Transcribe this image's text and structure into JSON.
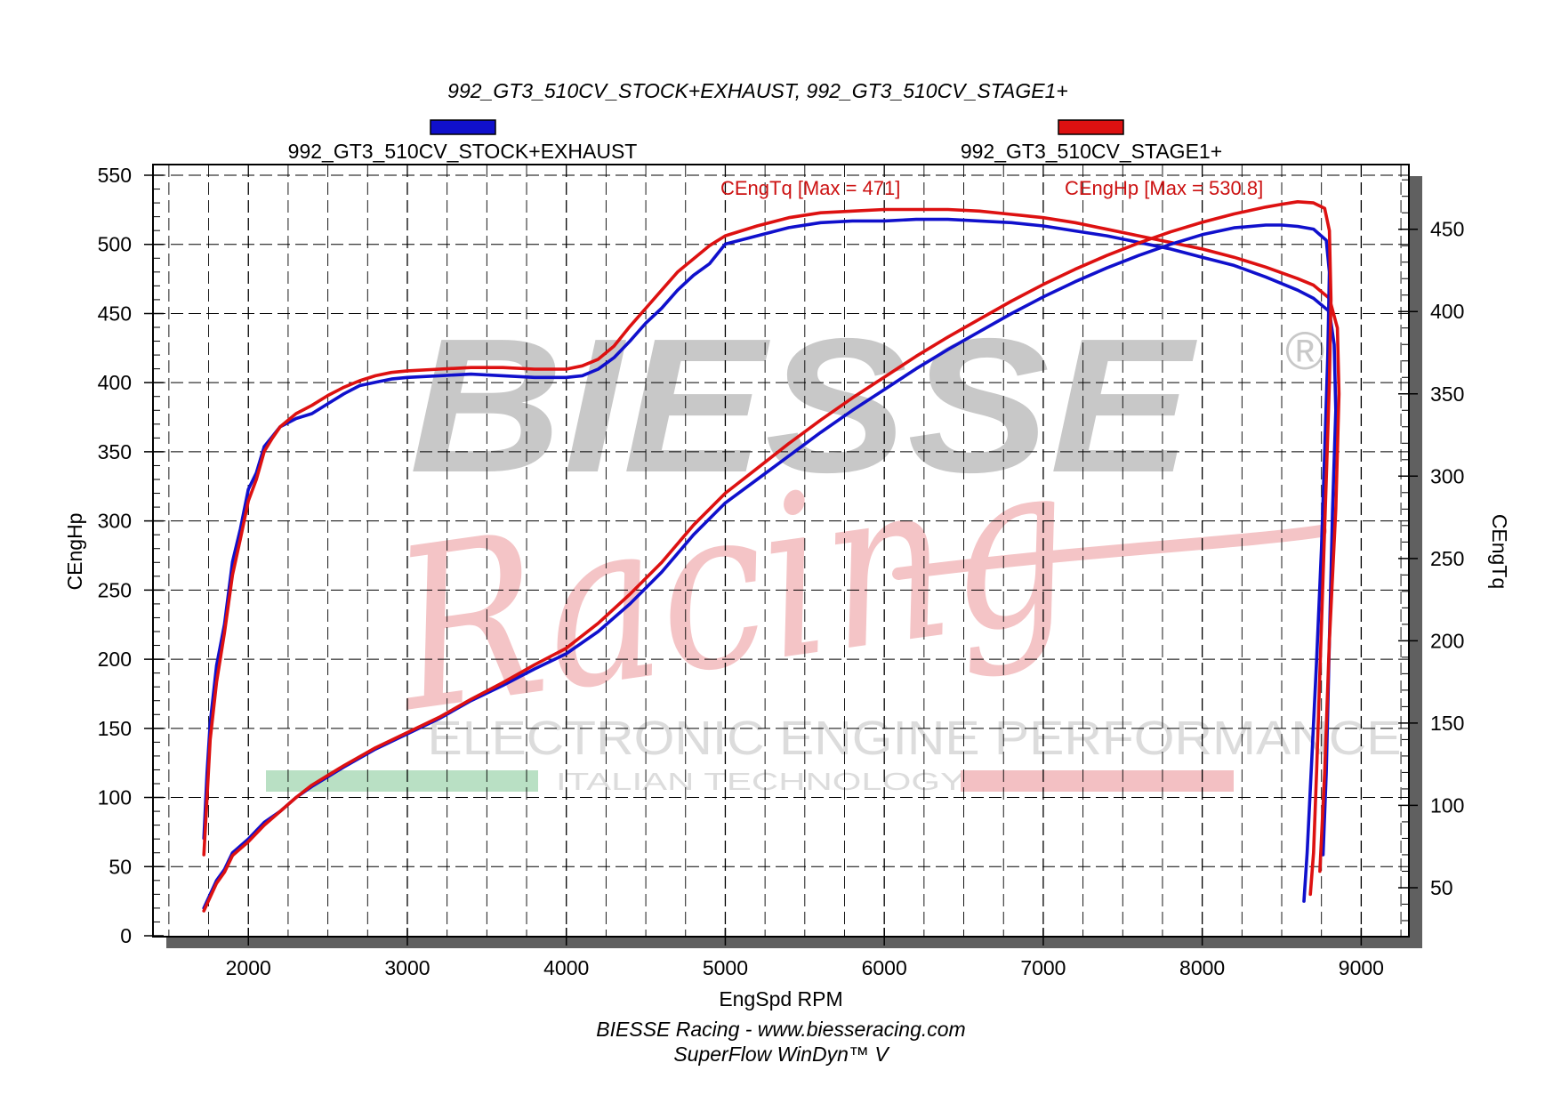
{
  "header": {
    "title": "992_GT3_510CV_STOCK+EXHAUST, 992_GT3_510CV_STAGE1+"
  },
  "footer": {
    "line1": "BIESSE Racing - www.biesseracing.com",
    "line2": "SuperFlow WinDyn™ V"
  },
  "watermark": {
    "brand": "BIESSE",
    "registered": "®",
    "script": "Racing",
    "tagline": "ELECTRONIC ENGINE PERFORMANCE",
    "subtagline": "ITALIAN TECHNOLOGY",
    "colors": {
      "brand": "#c8c8c8",
      "script": "#f4c4c6",
      "green": "#b9e0c4",
      "red": "#f3c0c3"
    }
  },
  "chart_data": {
    "type": "line",
    "xlabel": "EngSpd RPM",
    "ylabel_left": "CEngHp",
    "ylabel_right": "CEngTq",
    "xlim": [
      1400,
      9300
    ],
    "ylim_left": [
      0,
      550
    ],
    "ylim_right": [
      20.8,
      482.8
    ],
    "x_ticks": [
      2000,
      3000,
      4000,
      5000,
      6000,
      7000,
      8000,
      9000
    ],
    "y_left_ticks": [
      0,
      50,
      100,
      150,
      200,
      250,
      300,
      350,
      400,
      450,
      500,
      550
    ],
    "y_right_ticks": [
      50,
      100,
      150,
      200,
      250,
      300,
      350,
      400,
      450
    ],
    "grid": true,
    "legend": {
      "placement": "top",
      "entries": [
        {
          "name": "992_GT3_510CV_STOCK+EXHAUST",
          "color": "#1010cc"
        },
        {
          "name": "992_GT3_510CV_STAGE1+",
          "color": "#dd1111"
        }
      ]
    },
    "annotations": [
      {
        "text": "CEngTq [Max = 471]",
        "color": "#cc1111"
      },
      {
        "text": "CEngHp [Max = 530.8]",
        "color": "#cc1111"
      }
    ],
    "series": [
      {
        "name": "992_GT3_510CV_STOCK+EXHAUST",
        "quantity": "CEngTq",
        "axis": "right",
        "color": "#1010cc",
        "points": [
          [
            1720,
            80
          ],
          [
            1740,
            120
          ],
          [
            1760,
            150
          ],
          [
            1800,
            185
          ],
          [
            1850,
            210
          ],
          [
            1900,
            248
          ],
          [
            1950,
            268
          ],
          [
            2000,
            292
          ],
          [
            2050,
            302
          ],
          [
            2100,
            318
          ],
          [
            2150,
            324
          ],
          [
            2200,
            330
          ],
          [
            2300,
            335
          ],
          [
            2400,
            338
          ],
          [
            2500,
            344
          ],
          [
            2600,
            350
          ],
          [
            2700,
            355
          ],
          [
            2800,
            357
          ],
          [
            2900,
            359
          ],
          [
            3000,
            360
          ],
          [
            3200,
            361
          ],
          [
            3400,
            362
          ],
          [
            3600,
            361
          ],
          [
            3800,
            360
          ],
          [
            4000,
            360
          ],
          [
            4100,
            361
          ],
          [
            4200,
            365
          ],
          [
            4300,
            372
          ],
          [
            4400,
            382
          ],
          [
            4500,
            393
          ],
          [
            4600,
            402
          ],
          [
            4700,
            413
          ],
          [
            4800,
            422
          ],
          [
            4900,
            429
          ],
          [
            5000,
            441
          ],
          [
            5200,
            446
          ],
          [
            5400,
            451
          ],
          [
            5600,
            454
          ],
          [
            5800,
            455
          ],
          [
            6000,
            455
          ],
          [
            6200,
            456
          ],
          [
            6400,
            456
          ],
          [
            6600,
            455
          ],
          [
            6800,
            454
          ],
          [
            7000,
            452
          ],
          [
            7200,
            449
          ],
          [
            7400,
            446
          ],
          [
            7600,
            442
          ],
          [
            7800,
            438
          ],
          [
            8000,
            433
          ],
          [
            8200,
            428
          ],
          [
            8400,
            421
          ],
          [
            8600,
            413
          ],
          [
            8700,
            408
          ],
          [
            8800,
            400
          ],
          [
            8830,
            380
          ],
          [
            8840,
            340
          ],
          [
            8820,
            280
          ],
          [
            8800,
            200
          ],
          [
            8780,
            120
          ],
          [
            8760,
            70
          ]
        ]
      },
      {
        "name": "992_GT3_510CV_STAGE1+",
        "quantity": "CEngTq",
        "axis": "right",
        "color": "#dd1111",
        "points": [
          [
            1720,
            70
          ],
          [
            1740,
            105
          ],
          [
            1760,
            140
          ],
          [
            1800,
            175
          ],
          [
            1850,
            205
          ],
          [
            1900,
            240
          ],
          [
            1950,
            262
          ],
          [
            2000,
            285
          ],
          [
            2050,
            298
          ],
          [
            2100,
            315
          ],
          [
            2150,
            323
          ],
          [
            2200,
            330
          ],
          [
            2300,
            338
          ],
          [
            2400,
            343
          ],
          [
            2500,
            349
          ],
          [
            2600,
            354
          ],
          [
            2700,
            358
          ],
          [
            2800,
            361
          ],
          [
            2900,
            363
          ],
          [
            3000,
            364
          ],
          [
            3200,
            365
          ],
          [
            3400,
            366
          ],
          [
            3600,
            366
          ],
          [
            3800,
            365
          ],
          [
            4000,
            365
          ],
          [
            4100,
            367
          ],
          [
            4200,
            371
          ],
          [
            4300,
            379
          ],
          [
            4400,
            391
          ],
          [
            4500,
            402
          ],
          [
            4600,
            413
          ],
          [
            4700,
            424
          ],
          [
            4800,
            432
          ],
          [
            4900,
            440
          ],
          [
            5000,
            446
          ],
          [
            5200,
            452
          ],
          [
            5400,
            457
          ],
          [
            5600,
            460
          ],
          [
            5800,
            461
          ],
          [
            6000,
            462
          ],
          [
            6200,
            462
          ],
          [
            6400,
            462
          ],
          [
            6600,
            461
          ],
          [
            6800,
            459
          ],
          [
            7000,
            457
          ],
          [
            7200,
            454
          ],
          [
            7400,
            450
          ],
          [
            7600,
            446
          ],
          [
            7800,
            442
          ],
          [
            8000,
            438
          ],
          [
            8200,
            433
          ],
          [
            8400,
            427
          ],
          [
            8600,
            420
          ],
          [
            8700,
            416
          ],
          [
            8800,
            408
          ],
          [
            8850,
            390
          ],
          [
            8860,
            350
          ],
          [
            8840,
            280
          ],
          [
            8800,
            200
          ],
          [
            8770,
            120
          ],
          [
            8740,
            60
          ]
        ]
      },
      {
        "name": "992_GT3_510CV_STOCK+EXHAUST",
        "quantity": "CEngHp",
        "axis": "left",
        "color": "#1010cc",
        "points": [
          [
            1720,
            20
          ],
          [
            1760,
            30
          ],
          [
            1800,
            40
          ],
          [
            1850,
            48
          ],
          [
            1900,
            60
          ],
          [
            2000,
            70
          ],
          [
            2100,
            82
          ],
          [
            2200,
            90
          ],
          [
            2300,
            100
          ],
          [
            2400,
            108
          ],
          [
            2500,
            115
          ],
          [
            2600,
            122
          ],
          [
            2800,
            135
          ],
          [
            3000,
            146
          ],
          [
            3200,
            157
          ],
          [
            3400,
            170
          ],
          [
            3600,
            181
          ],
          [
            3800,
            193
          ],
          [
            4000,
            204
          ],
          [
            4200,
            220
          ],
          [
            4400,
            240
          ],
          [
            4600,
            263
          ],
          [
            4800,
            290
          ],
          [
            5000,
            313
          ],
          [
            5200,
            330
          ],
          [
            5400,
            347
          ],
          [
            5600,
            364
          ],
          [
            5800,
            380
          ],
          [
            6000,
            395
          ],
          [
            6200,
            410
          ],
          [
            6400,
            424
          ],
          [
            6600,
            437
          ],
          [
            6800,
            450
          ],
          [
            7000,
            462
          ],
          [
            7200,
            473
          ],
          [
            7400,
            483
          ],
          [
            7600,
            492
          ],
          [
            7800,
            500
          ],
          [
            8000,
            507
          ],
          [
            8200,
            512
          ],
          [
            8400,
            514
          ],
          [
            8500,
            514
          ],
          [
            8600,
            513
          ],
          [
            8700,
            511
          ],
          [
            8780,
            503
          ],
          [
            8800,
            480
          ],
          [
            8790,
            420
          ],
          [
            8770,
            350
          ],
          [
            8750,
            280
          ],
          [
            8720,
            200
          ],
          [
            8690,
            130
          ],
          [
            8660,
            60
          ],
          [
            8640,
            25
          ]
        ]
      },
      {
        "name": "992_GT3_510CV_STAGE1+",
        "quantity": "CEngHp",
        "axis": "left",
        "color": "#dd1111",
        "points": [
          [
            1720,
            18
          ],
          [
            1760,
            28
          ],
          [
            1800,
            38
          ],
          [
            1850,
            46
          ],
          [
            1900,
            58
          ],
          [
            2000,
            68
          ],
          [
            2100,
            80
          ],
          [
            2200,
            90
          ],
          [
            2300,
            100
          ],
          [
            2400,
            109
          ],
          [
            2500,
            116
          ],
          [
            2600,
            123
          ],
          [
            2800,
            136
          ],
          [
            3000,
            147
          ],
          [
            3200,
            158
          ],
          [
            3400,
            171
          ],
          [
            3600,
            183
          ],
          [
            3800,
            196
          ],
          [
            4000,
            208
          ],
          [
            4200,
            226
          ],
          [
            4400,
            247
          ],
          [
            4600,
            270
          ],
          [
            4800,
            297
          ],
          [
            5000,
            320
          ],
          [
            5200,
            338
          ],
          [
            5400,
            356
          ],
          [
            5600,
            373
          ],
          [
            5800,
            389
          ],
          [
            6000,
            404
          ],
          [
            6200,
            419
          ],
          [
            6400,
            433
          ],
          [
            6600,
            446
          ],
          [
            6800,
            459
          ],
          [
            7000,
            471
          ],
          [
            7200,
            482
          ],
          [
            7400,
            492
          ],
          [
            7600,
            501
          ],
          [
            7800,
            509
          ],
          [
            8000,
            516
          ],
          [
            8200,
            522
          ],
          [
            8400,
            527
          ],
          [
            8500,
            529
          ],
          [
            8600,
            530.8
          ],
          [
            8700,
            530
          ],
          [
            8770,
            526
          ],
          [
            8800,
            510
          ],
          [
            8810,
            460
          ],
          [
            8800,
            400
          ],
          [
            8780,
            330
          ],
          [
            8760,
            260
          ],
          [
            8740,
            190
          ],
          [
            8720,
            120
          ],
          [
            8700,
            60
          ],
          [
            8680,
            30
          ]
        ]
      }
    ]
  }
}
